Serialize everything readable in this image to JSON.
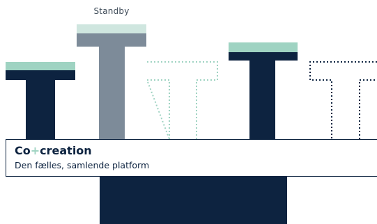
{
  "labels": {
    "standby": "Standby"
  },
  "platform": {
    "title_part1": "Co",
    "title_plus": "+",
    "title_part2": "creation",
    "subtitle": "Den fælles, samlende platform"
  },
  "colors": {
    "navy": "#0d2340",
    "mint": "#9fd3c2",
    "light_mint": "#cfe6df",
    "slate": "#7d8b99"
  },
  "pillars": [
    {
      "style": "solid-navy",
      "cap": "mint"
    },
    {
      "style": "solid-slate",
      "cap": "light-mint"
    },
    {
      "style": "dotted-mint",
      "cap": "none"
    },
    {
      "style": "solid-navy",
      "cap": "mint"
    },
    {
      "style": "dotted-navy",
      "cap": "none"
    }
  ]
}
